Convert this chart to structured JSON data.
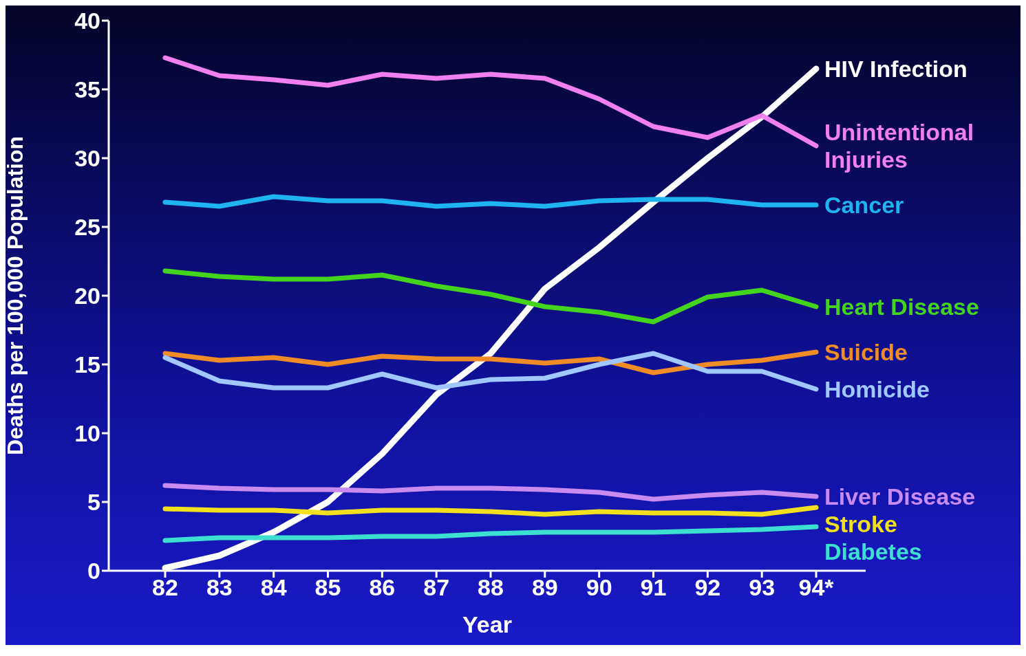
{
  "chart_data": {
    "type": "line",
    "xlabel": "Year",
    "ylabel": "Deaths per 100,000 Population",
    "categories": [
      "82",
      "83",
      "84",
      "85",
      "86",
      "87",
      "88",
      "89",
      "90",
      "91",
      "92",
      "93",
      "94*"
    ],
    "ylim": [
      0,
      40
    ],
    "yticks": [
      0,
      5,
      10,
      15,
      20,
      25,
      30,
      35,
      40
    ],
    "series": [
      {
        "name": "HIV Infection",
        "color": "#ffffff",
        "values": [
          0.2,
          1.1,
          2.8,
          5,
          8.5,
          12.8,
          15.8,
          20.5,
          23.5,
          26.8,
          30,
          33,
          36.5
        ]
      },
      {
        "name": "Unintentional Injuries",
        "color": "#f07ff0",
        "values": [
          37.3,
          36,
          35.7,
          35.3,
          36.1,
          35.8,
          36.1,
          35.8,
          34.3,
          32.3,
          31.5,
          33.1,
          30.9
        ]
      },
      {
        "name": "Cancer",
        "color": "#1eb4f0",
        "values": [
          26.8,
          26.5,
          27.2,
          26.9,
          26.9,
          26.5,
          26.7,
          26.5,
          26.9,
          27,
          27,
          26.6,
          26.6
        ]
      },
      {
        "name": "Heart Disease",
        "color": "#44d41e",
        "values": [
          21.8,
          21.4,
          21.2,
          21.2,
          21.5,
          20.7,
          20.1,
          19.2,
          18.8,
          18.1,
          19.9,
          20.4,
          19.2
        ]
      },
      {
        "name": "Suicide",
        "color": "#f08c28",
        "values": [
          15.8,
          15.3,
          15.5,
          15,
          15.6,
          15.4,
          15.4,
          15.1,
          15.4,
          14.4,
          15,
          15.3,
          15.9
        ]
      },
      {
        "name": "Homicide",
        "color": "#a0c8ff",
        "values": [
          15.5,
          13.8,
          13.3,
          13.3,
          14.3,
          13.3,
          13.9,
          14,
          15,
          15.8,
          14.5,
          14.5,
          13.2
        ]
      },
      {
        "name": "Liver Disease",
        "color": "#c88cf0",
        "values": [
          6.2,
          6,
          5.9,
          5.9,
          5.8,
          6,
          6,
          5.9,
          5.7,
          5.2,
          5.5,
          5.7,
          5.4
        ]
      },
      {
        "name": "Stroke",
        "color": "#f0e01e",
        "values": [
          4.5,
          4.4,
          4.4,
          4.2,
          4.4,
          4.4,
          4.3,
          4.1,
          4.3,
          4.2,
          4.2,
          4.1,
          4.6
        ]
      },
      {
        "name": "Diabetes",
        "color": "#3ce0d0",
        "values": [
          2.2,
          2.4,
          2.4,
          2.4,
          2.5,
          2.5,
          2.7,
          2.8,
          2.8,
          2.8,
          2.9,
          3,
          3.2
        ]
      }
    ]
  }
}
